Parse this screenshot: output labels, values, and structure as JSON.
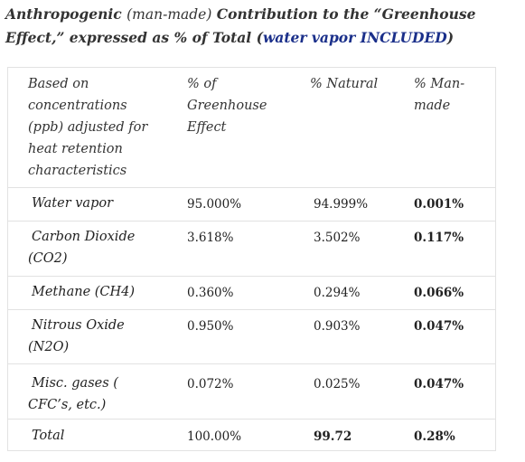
{
  "title": {
    "part1": "Anthropogenic ",
    "part2": "(man-made)",
    "part3": " Contribution to the “Greenhouse Effect,” expressed as % of Total (",
    "part4": "water vapor INCLUDED",
    "part5": ")"
  },
  "table": {
    "headers": [
      "Based on concentrations (ppb) adjusted for heat retention characteristics",
      "% of Greenhouse Effect",
      "% Natural",
      "% Man-made"
    ],
    "rows": [
      {
        "label": "Water vapor",
        "greenhouse": "95.000%",
        "natural": "94.999%",
        "manmade": "0.001%"
      },
      {
        "label": "Carbon Dioxide (CO2)",
        "greenhouse": "3.618%",
        "natural": "3.502%",
        "manmade": "0.117%"
      },
      {
        "label": "Methane (CH4)",
        "greenhouse": "0.360%",
        "natural": "0.294%",
        "manmade": "0.066%"
      },
      {
        "label": "Nitrous Oxide (N2O)",
        "greenhouse": "0.950%",
        "natural": "0.903%",
        "manmade": "0.047%"
      },
      {
        "label": "Misc. gases ( CFC’s, etc.)",
        "greenhouse": "0.072%",
        "natural": "0.025%",
        "manmade": "0.047%"
      },
      {
        "label": "Total",
        "greenhouse": "100.00%",
        "natural": "99.72",
        "manmade": "0.28%"
      }
    ]
  }
}
